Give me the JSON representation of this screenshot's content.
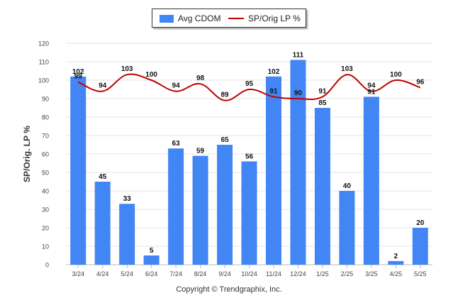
{
  "chart_data": {
    "type": "bar",
    "categories": [
      "3/24",
      "4/24",
      "5/24",
      "6/24",
      "7/24",
      "8/24",
      "9/24",
      "10/24",
      "11/24",
      "12/24",
      "1/25",
      "2/25",
      "3/25",
      "4/25",
      "5/25"
    ],
    "series": [
      {
        "name": "Avg CDOM",
        "type": "bar",
        "color": "#4285f4",
        "values": [
          102,
          45,
          33,
          5,
          63,
          59,
          65,
          56,
          102,
          111,
          85,
          40,
          91,
          2,
          20
        ]
      },
      {
        "name": "SP/Orig LP %",
        "type": "line",
        "color": "#c00000",
        "values": [
          99,
          94,
          103,
          100,
          94,
          98,
          89,
          95,
          91,
          90,
          91,
          103,
          94,
          100,
          96
        ]
      }
    ],
    "ylabel": "SP/Orig. LP %",
    "ylim": [
      0,
      120
    ],
    "yticks": [
      0,
      10,
      20,
      30,
      40,
      50,
      60,
      70,
      80,
      90,
      100,
      110,
      120
    ],
    "grid": true,
    "legend": "top-center"
  },
  "footer": "Copyright © Trendgraphix, Inc."
}
